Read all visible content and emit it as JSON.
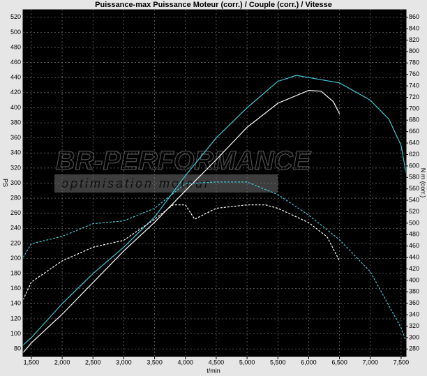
{
  "chart_data": {
    "type": "line",
    "title": "Puissance-max Puissance Moteur (corr.) / Couple (corr.) / Vitesse",
    "x_label": "t/min",
    "y_label": "PS",
    "y2_label": "N m (corr.)",
    "watermark": "BR-PERFORMANCE",
    "watermark_sub": "optimisation moteur",
    "grid": true,
    "xlim": [
      1365,
      7580
    ],
    "xticks": [
      {
        "value": 1500,
        "label": "1,500"
      },
      {
        "value": 2000,
        "label": "2,000"
      },
      {
        "value": 2500,
        "label": "2,500"
      },
      {
        "value": 3000,
        "label": "3,000"
      },
      {
        "value": 3500,
        "label": "3,500"
      },
      {
        "value": 4000,
        "label": "4,000"
      },
      {
        "value": 4500,
        "label": "4,500"
      },
      {
        "value": 5000,
        "label": "5,000"
      },
      {
        "value": 5500,
        "label": "5,500"
      },
      {
        "value": 6000,
        "label": "6,000"
      },
      {
        "value": 6500,
        "label": "6,500"
      },
      {
        "value": 7000,
        "label": "7,000"
      },
      {
        "value": 7500,
        "label": "7,500"
      }
    ],
    "ylim": [
      70,
      530
    ],
    "yticks": [
      80,
      100,
      120,
      140,
      160,
      180,
      200,
      220,
      240,
      260,
      280,
      300,
      320,
      340,
      360,
      380,
      400,
      420,
      440,
      460,
      480,
      500,
      520
    ],
    "y2lim": [
      267,
      873
    ],
    "y2ticks": [
      280,
      300,
      320,
      340,
      360,
      380,
      400,
      420,
      440,
      460,
      480,
      500,
      520,
      540,
      560,
      580,
      600,
      620,
      640,
      660,
      680,
      700,
      720,
      740,
      760,
      780,
      800,
      820,
      840,
      860
    ],
    "series": [
      {
        "color": "#3fc8d8",
        "dash": false,
        "axis": "y",
        "x": [
          1365,
          1500,
          2000,
          2500,
          3000,
          3500,
          4000,
          4500,
          5000,
          5500,
          5800,
          6000,
          6500,
          7000,
          7300,
          7500,
          7580
        ],
        "values": [
          85,
          95,
          140,
          180,
          215,
          255,
          310,
          360,
          400,
          435,
          443,
          440,
          433,
          410,
          385,
          350,
          313
        ]
      },
      {
        "color": "#ffffff",
        "dash": false,
        "axis": "y",
        "x": [
          1365,
          1500,
          2000,
          2500,
          3000,
          3500,
          4000,
          4500,
          5000,
          5500,
          6000,
          6200,
          6400,
          6500
        ],
        "values": [
          75,
          88,
          126,
          168,
          210,
          248,
          290,
          331,
          374,
          406,
          423,
          422,
          408,
          392
        ]
      },
      {
        "color": "#3fc8d8",
        "dash": true,
        "axis": "y2",
        "x": [
          1365,
          1500,
          2000,
          2500,
          3000,
          3500,
          4000,
          4500,
          5000,
          5500,
          6000,
          6500,
          7000,
          7500,
          7580
        ],
        "values": [
          440,
          464,
          477,
          499,
          504,
          526,
          569,
          572,
          572,
          550,
          514,
          471,
          415,
          317,
          294
        ]
      },
      {
        "color": "#ffffff",
        "dash": true,
        "axis": "y2",
        "x": [
          1365,
          1500,
          2000,
          2500,
          3000,
          3500,
          3800,
          4000,
          4150,
          4500,
          5000,
          5300,
          5500,
          6000,
          6300,
          6500
        ],
        "values": [
          366,
          397,
          434,
          458,
          470,
          507,
          532,
          532,
          507,
          526,
          532,
          532,
          526,
          501,
          476,
          434
        ]
      }
    ]
  }
}
